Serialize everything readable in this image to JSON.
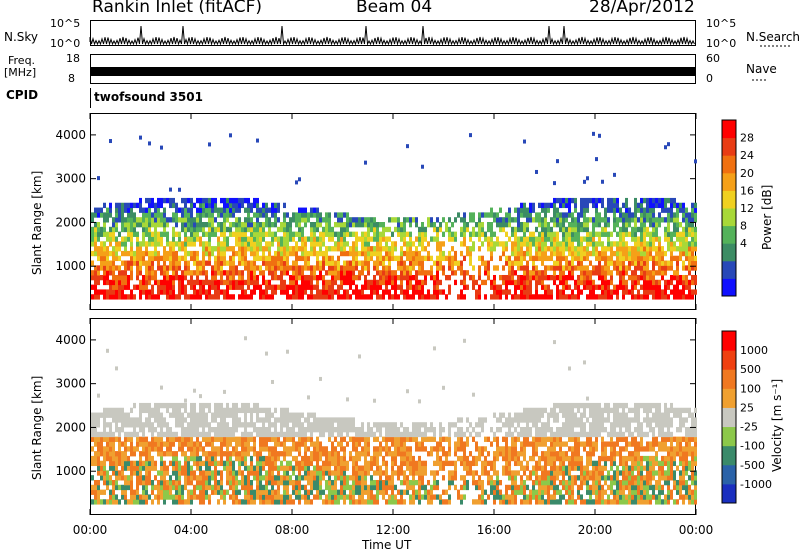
{
  "header": {
    "station": "Rankin Inlet (fitACF)",
    "beam": "Beam 04",
    "date": "28/Apr/2012"
  },
  "top_panels": {
    "nsky_label": "N.Sky",
    "nsky_ticks": [
      "10^5",
      "10^0"
    ],
    "nsearch_label": "N.Search",
    "nsearch_ticks": [
      "10^5",
      "10^0"
    ],
    "freq_label": "Freq.",
    "freq_unit": "[MHz]",
    "freq_ticks": [
      "18",
      "8"
    ],
    "nave_label": "Nave",
    "nave_ticks": [
      "60",
      "0"
    ],
    "cpid_label": "CPID",
    "cpid_value": "twofsound 3501"
  },
  "chart_data": [
    {
      "type": "heatmap",
      "name": "power",
      "ylabel": "Slant Range [km]",
      "yticks": [
        "4000",
        "3000",
        "2000",
        "1000"
      ],
      "colorbar_label": "Power [dB]",
      "colorbar_ticks": [
        "28",
        "24",
        "20",
        "16",
        "12",
        "8",
        "4"
      ],
      "colors": [
        "#1010ff",
        "#2848b8",
        "#3c8c64",
        "#54b25a",
        "#a8d838",
        "#f0d020",
        "#f5a018",
        "#f07010",
        "#e83c14",
        "#ff0000"
      ]
    },
    {
      "type": "heatmap",
      "name": "velocity",
      "ylabel": "Slant Range [km]",
      "yticks": [
        "4000",
        "3000",
        "2000",
        "1000"
      ],
      "colorbar_label": "Velocity [m s⁻¹]",
      "colorbar_ticks": [
        "1000",
        "500",
        "100",
        "25",
        "-25",
        "-100",
        "-500",
        "-1000"
      ],
      "colors": [
        "#1a2fbf",
        "#2a62a8",
        "#3a8a6a",
        "#8cc84a",
        "#c8c8c0",
        "#f0a030",
        "#f07820",
        "#f04010",
        "#ff0000"
      ]
    }
  ],
  "xaxis": {
    "label": "Time UT",
    "ticks": [
      "00:00",
      "04:00",
      "08:00",
      "12:00",
      "16:00",
      "20:00",
      "00:00"
    ]
  }
}
